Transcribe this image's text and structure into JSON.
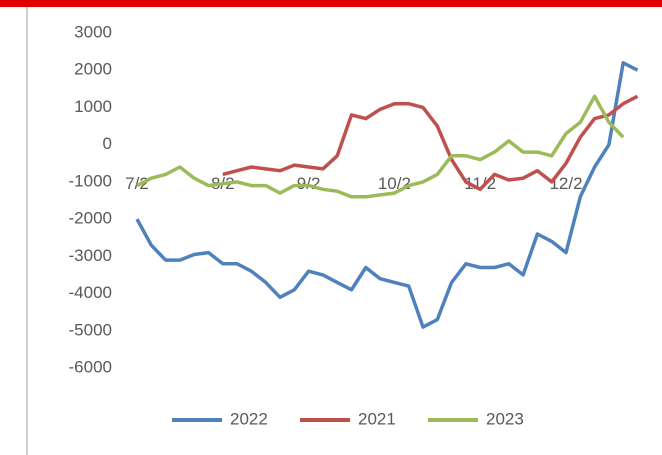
{
  "chart_data": {
    "type": "line",
    "categories": [
      "7/2",
      null,
      null,
      null,
      null,
      null,
      "8/2",
      null,
      null,
      null,
      null,
      null,
      "9/2",
      null,
      null,
      null,
      null,
      null,
      "10/2",
      null,
      null,
      null,
      null,
      null,
      "11/2",
      null,
      null,
      null,
      null,
      null,
      "12/2",
      null,
      null,
      null,
      null,
      null
    ],
    "series": [
      {
        "name": "2022",
        "color": "#4f81bd",
        "values": [
          -2000,
          -2700,
          -3100,
          -3100,
          -2950,
          -2900,
          -3200,
          -3200,
          -3400,
          -3700,
          -4100,
          -3900,
          -3400,
          -3500,
          -3700,
          -3900,
          -3300,
          -3600,
          -3700,
          -3800,
          -4900,
          -4700,
          -3700,
          -3200,
          -3300,
          -3300,
          -3200,
          -3500,
          -2400,
          -2600,
          -2900,
          -1400,
          -600,
          0,
          2200,
          2000
        ]
      },
      {
        "name": "2021",
        "color": "#c0504d",
        "values": [
          null,
          null,
          null,
          null,
          null,
          null,
          -800,
          -700,
          -600,
          -650,
          -700,
          -550,
          -600,
          -650,
          -300,
          800,
          700,
          950,
          1100,
          1100,
          1000,
          500,
          -400,
          -1000,
          -1200,
          -800,
          -950,
          -900,
          -700,
          -1000,
          -500,
          200,
          700,
          800,
          1100,
          1300
        ]
      },
      {
        "name": "2023",
        "color": "#9bbb59",
        "values": [
          -1100,
          -900,
          -800,
          -600,
          -900,
          -1100,
          -1050,
          -1000,
          -1100,
          -1100,
          -1300,
          -1100,
          -1100,
          -1200,
          -1250,
          -1400,
          -1400,
          -1350,
          -1300,
          -1100,
          -1000,
          -800,
          -300,
          -300,
          -400,
          -200,
          100,
          -200,
          -200,
          -300,
          300,
          600,
          1300,
          600,
          200,
          null
        ]
      }
    ],
    "ylim": [
      -6000,
      3000
    ],
    "yticks": [
      3000,
      2000,
      1000,
      0,
      -1000,
      -2000,
      -3000,
      -4000,
      -5000,
      -6000
    ],
    "grid": false,
    "legend": "bottom"
  }
}
